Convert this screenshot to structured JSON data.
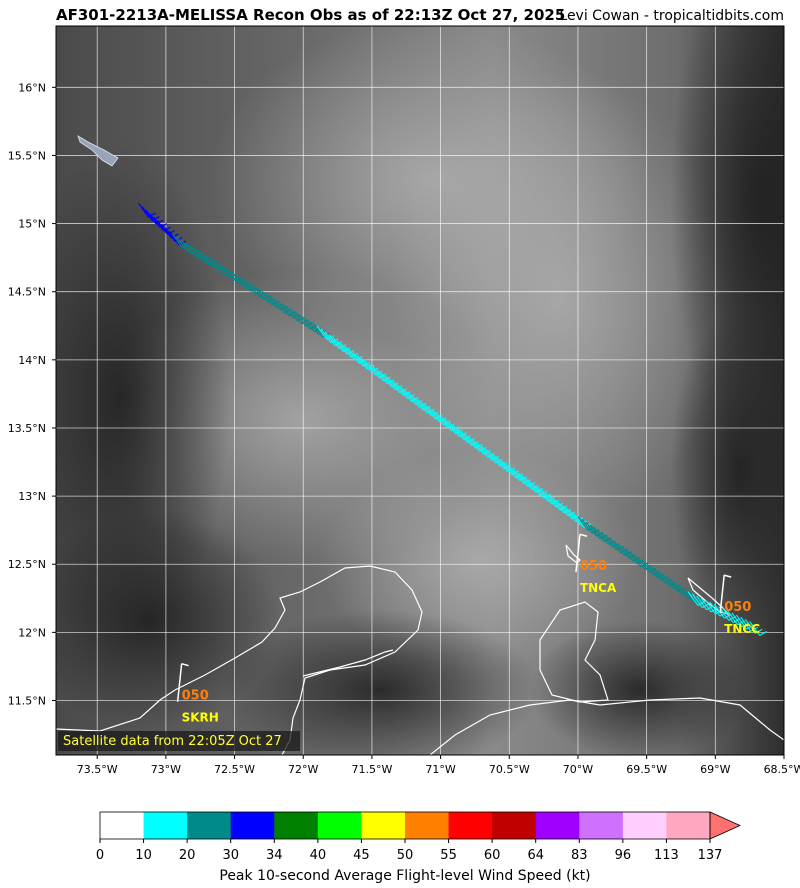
{
  "header": {
    "title": "AF301-2213A-MELISSA Recon Obs as of 22:13Z Oct 27, 2025",
    "credit": "Levi Cowan - tropicaltidbits.com"
  },
  "map": {
    "lon_range": [
      -73.8,
      -68.5
    ],
    "lat_range": [
      11.1,
      16.45
    ],
    "lon_ticks": [
      {
        "v": -73.5,
        "label": "73.5°W"
      },
      {
        "v": -73.0,
        "label": "73°W"
      },
      {
        "v": -72.5,
        "label": "72.5°W"
      },
      {
        "v": -72.0,
        "label": "72°W"
      },
      {
        "v": -71.5,
        "label": "71.5°W"
      },
      {
        "v": -71.0,
        "label": "71°W"
      },
      {
        "v": -70.5,
        "label": "70.5°W"
      },
      {
        "v": -70.0,
        "label": "70°W"
      },
      {
        "v": -69.5,
        "label": "69.5°W"
      },
      {
        "v": -69.0,
        "label": "69°W"
      },
      {
        "v": -68.5,
        "label": "68.5°W"
      }
    ],
    "lat_ticks": [
      {
        "v": 11.5,
        "label": "11.5°N"
      },
      {
        "v": 12.0,
        "label": "12°N"
      },
      {
        "v": 12.5,
        "label": "12.5°N"
      },
      {
        "v": 13.0,
        "label": "13°N"
      },
      {
        "v": 13.5,
        "label": "13.5°N"
      },
      {
        "v": 14.0,
        "label": "14°N"
      },
      {
        "v": 14.5,
        "label": "14.5°N"
      },
      {
        "v": 15.0,
        "label": "15°N"
      },
      {
        "v": 15.5,
        "label": "15.5°N"
      },
      {
        "v": 16.0,
        "label": "16°N"
      }
    ],
    "flight_track": {
      "start": [
        -73.2,
        15.15
      ],
      "end": [
        -68.75,
        12.08
      ],
      "segments": [
        {
          "from": [
            -73.2,
            15.15
          ],
          "to": [
            -72.95,
            14.92
          ],
          "color": "#0000ff"
        },
        {
          "from": [
            -72.95,
            14.92
          ],
          "to": [
            -71.9,
            14.25
          ],
          "color": "#008b8b"
        },
        {
          "from": [
            -71.9,
            14.25
          ],
          "to": [
            -70.0,
            12.85
          ],
          "color": "#00ffff"
        },
        {
          "from": [
            -70.0,
            12.85
          ],
          "to": [
            -69.2,
            12.3
          ],
          "color": "#008b8b"
        },
        {
          "from": [
            -69.2,
            12.3
          ],
          "to": [
            -68.75,
            12.08
          ],
          "color": "#00ffff"
        }
      ]
    },
    "stations": [
      {
        "id": "SKRH",
        "value": "050",
        "lon": -72.9,
        "lat": 11.55
      },
      {
        "id": "TNCA",
        "value": "050",
        "lon": -70.0,
        "lat": 12.5
      },
      {
        "id": "TNCC",
        "value": "050",
        "lon": -68.95,
        "lat": 12.2
      }
    ],
    "satellite_note": "Satellite data from 22:05Z Oct 27",
    "aircraft_icon": "airplane-icon"
  },
  "colorbar": {
    "ticks": [
      "0",
      "10",
      "20",
      "30",
      "34",
      "40",
      "45",
      "50",
      "55",
      "60",
      "64",
      "83",
      "96",
      "113",
      "137"
    ],
    "colors": [
      "#ffffff",
      "#00ffff",
      "#008b8b",
      "#0000ff",
      "#008000",
      "#00ff00",
      "#ffff00",
      "#ff7f00",
      "#ff0000",
      "#c00000",
      "#a000ff",
      "#d070ff",
      "#ffd0ff",
      "#ffa8c0"
    ],
    "extend_color": "#ff7070",
    "label": "Peak 10-second Average Flight-level Wind Speed (kt)"
  }
}
